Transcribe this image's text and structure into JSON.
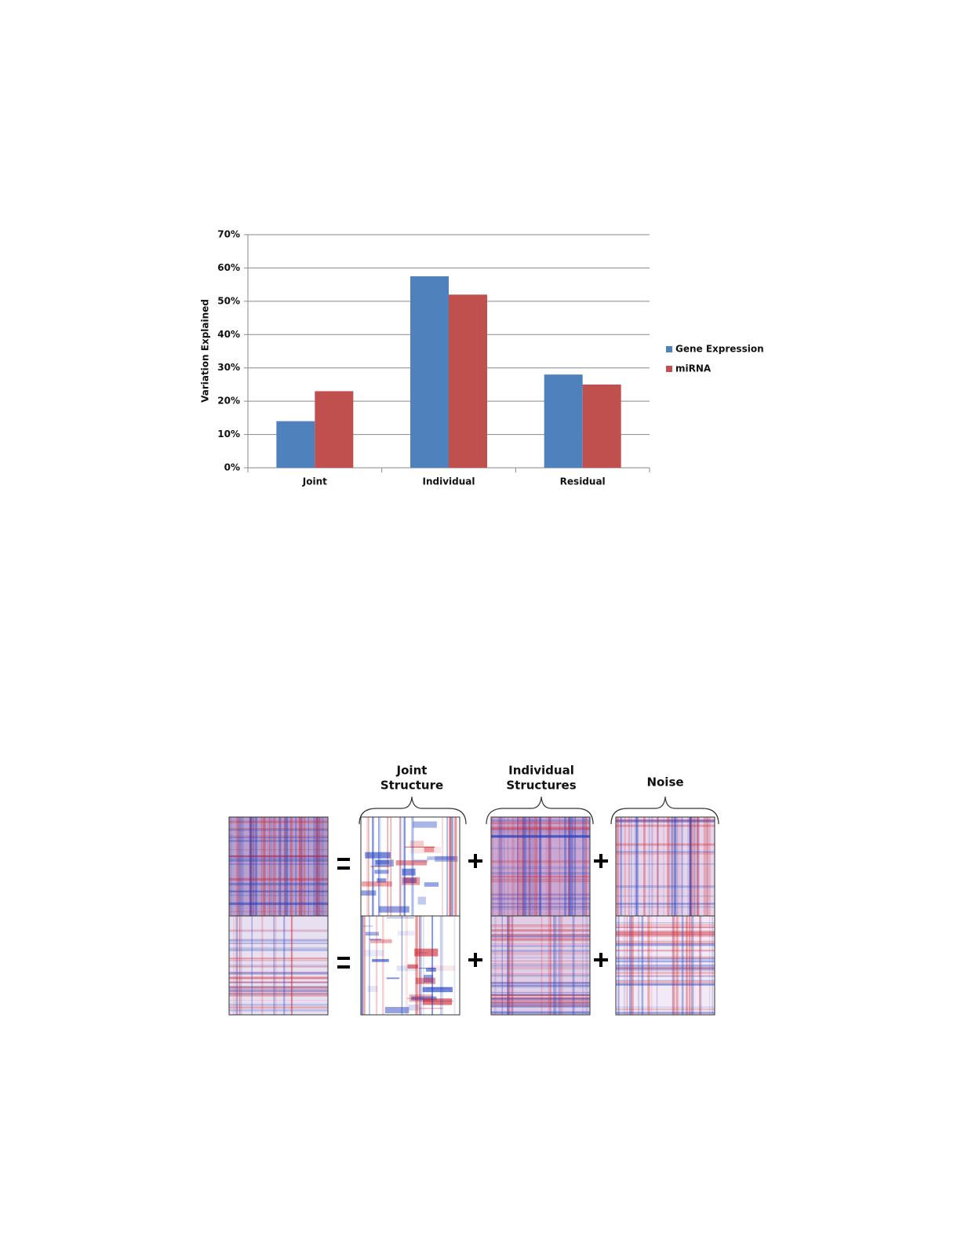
{
  "chart_data": {
    "type": "bar",
    "y_label": "Variation Explained",
    "categories": [
      "Joint",
      "Individual",
      "Residual"
    ],
    "series": [
      {
        "name": "Gene Expression",
        "color": "#4f81bd",
        "values": [
          14,
          57.5,
          28
        ]
      },
      {
        "name": "miRNA",
        "color": "#c0504d",
        "values": [
          23,
          52,
          25
        ]
      }
    ],
    "ylim": [
      0,
      70
    ],
    "yticks": [
      {
        "value": 0,
        "label": "0%"
      },
      {
        "value": 10,
        "label": "10%"
      },
      {
        "value": 20,
        "label": "20%"
      },
      {
        "value": 30,
        "label": "30%"
      },
      {
        "value": 40,
        "label": "40%"
      },
      {
        "value": 50,
        "label": "50%"
      },
      {
        "value": 60,
        "label": "60%"
      },
      {
        "value": 70,
        "label": "70%"
      }
    ],
    "grid": true,
    "legend": "right"
  },
  "figure": {
    "labels": [
      [
        "Joint",
        "Structure"
      ],
      [
        "Individual",
        "Structures"
      ],
      [
        "Noise"
      ]
    ]
  }
}
